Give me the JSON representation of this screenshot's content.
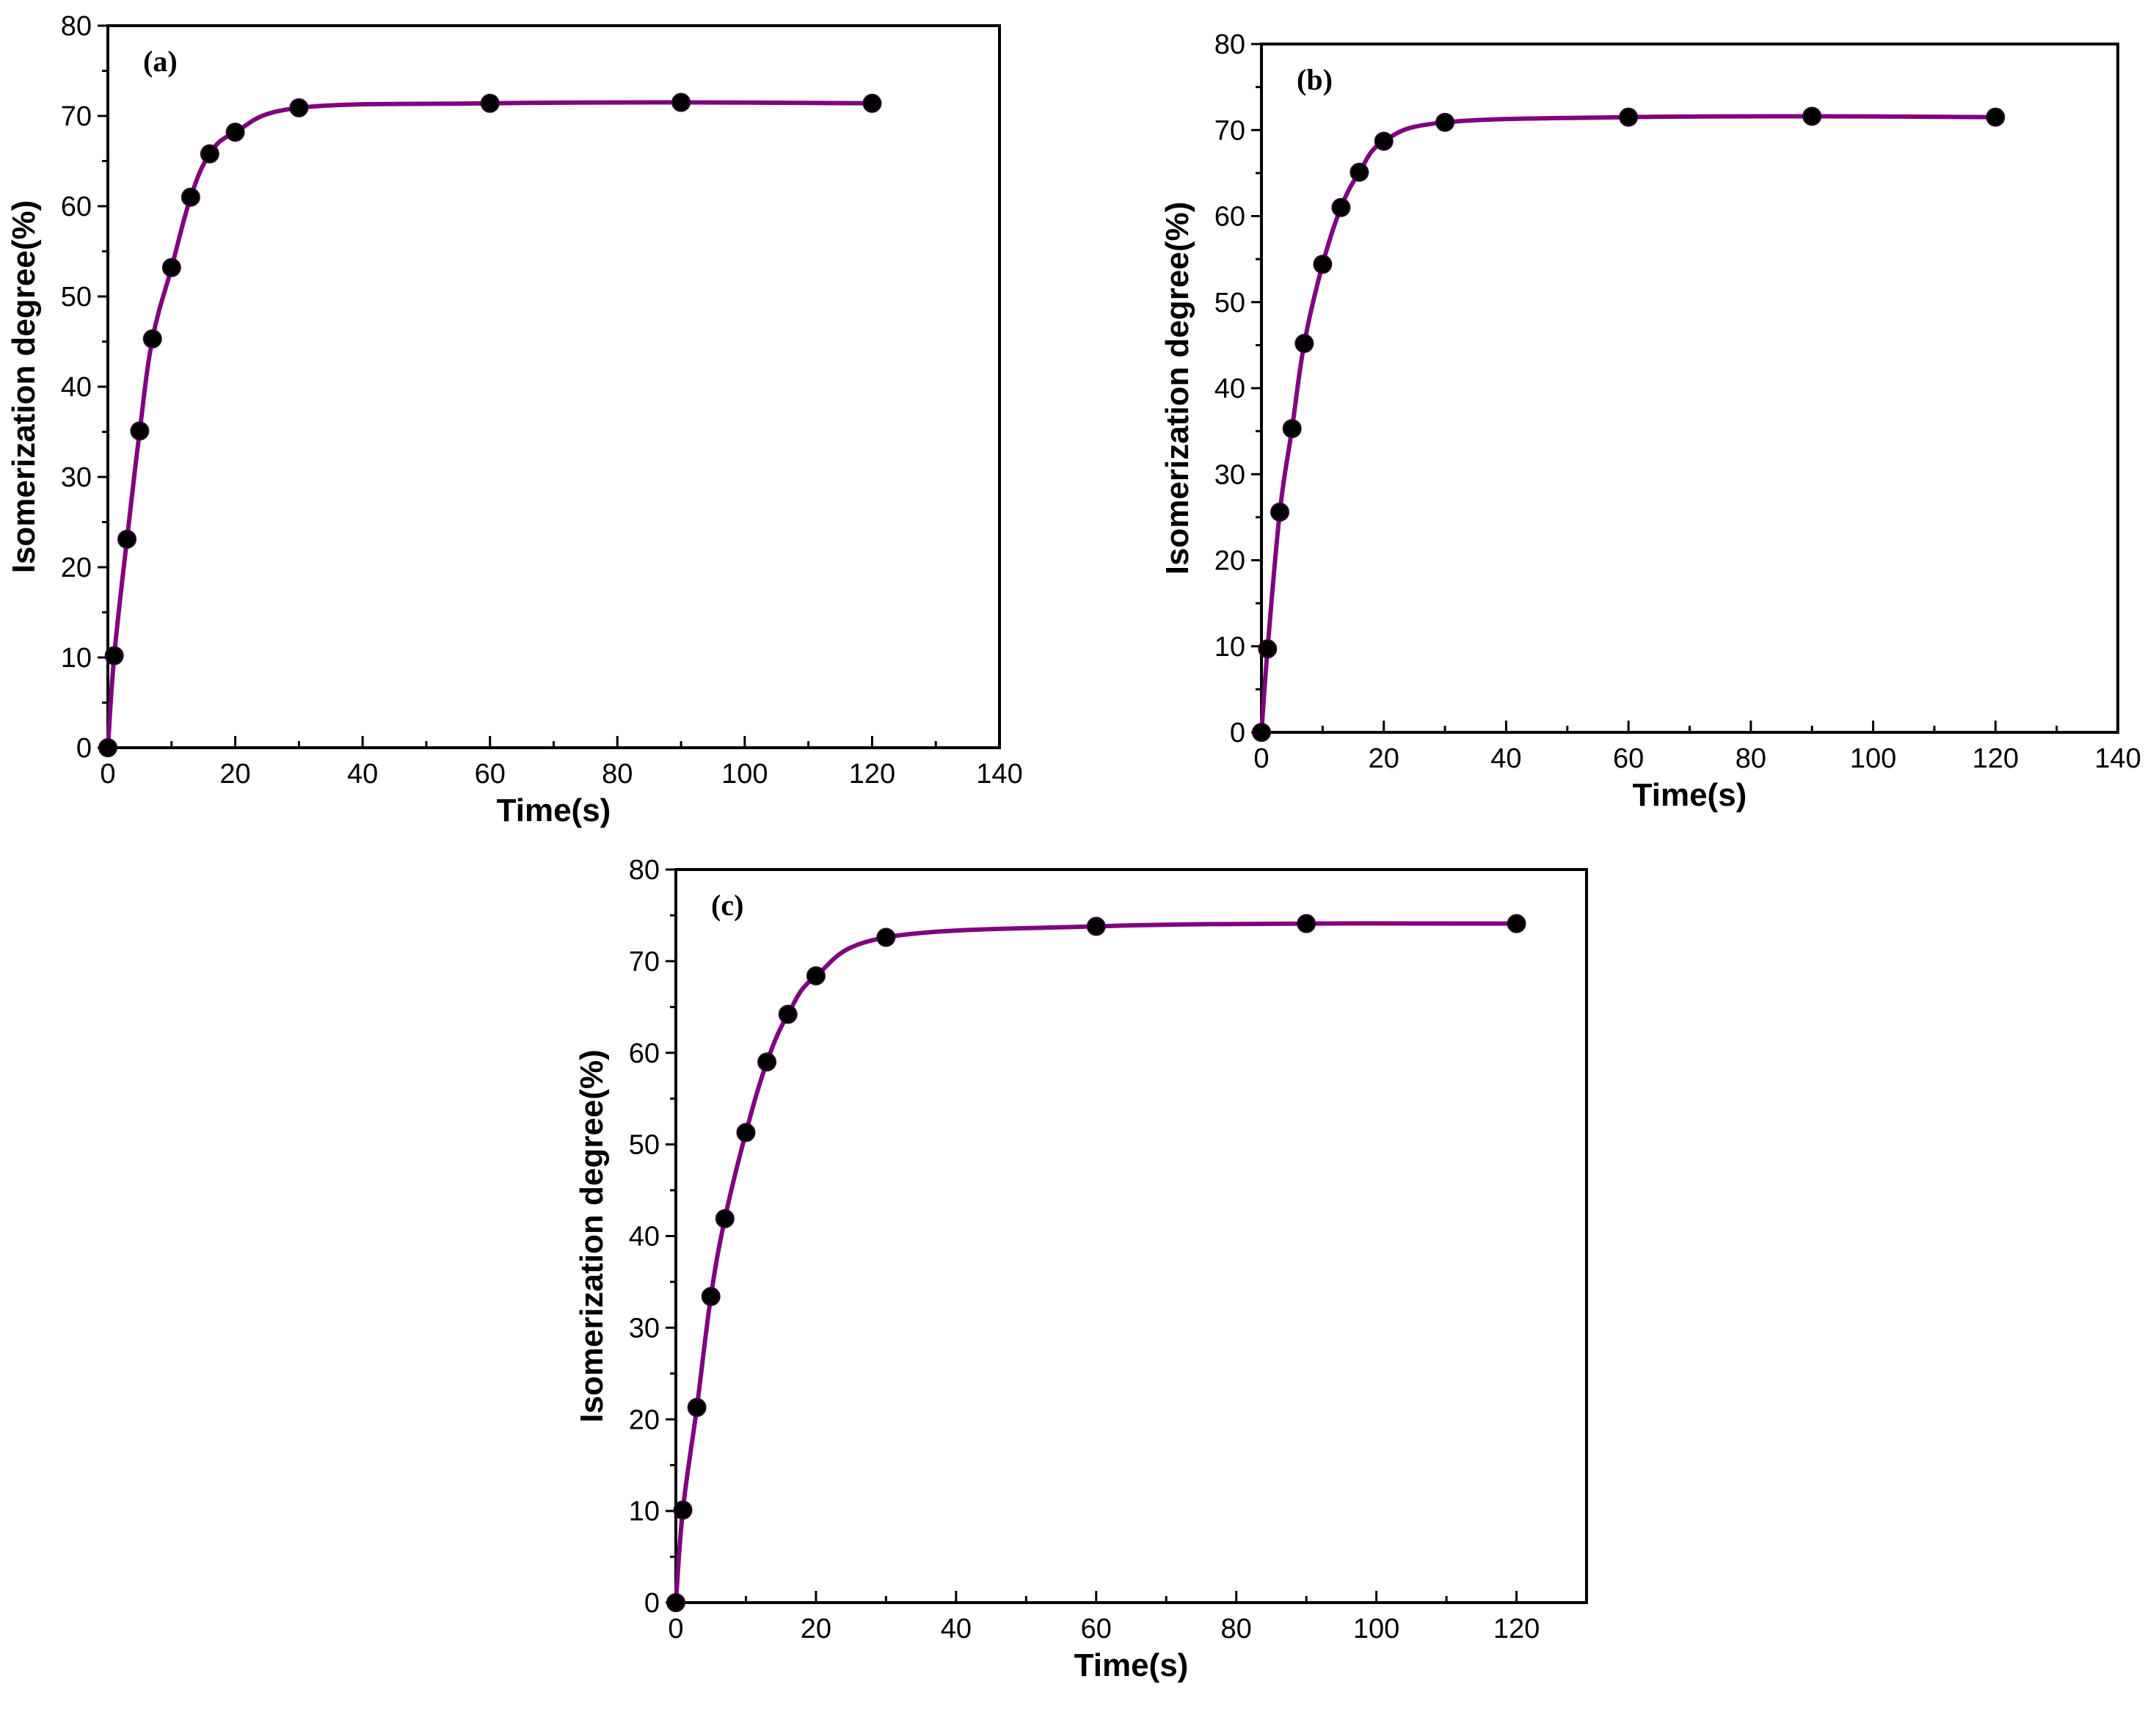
{
  "chart_data": [
    {
      "type": "line",
      "panel_label": "(a)",
      "xlabel": "Time(s)",
      "ylabel": "Isomerization degree(%)",
      "xlim": [
        0,
        140
      ],
      "ylim": [
        0,
        80
      ],
      "x_ticks": [
        0,
        20,
        40,
        60,
        80,
        100,
        120,
        140
      ],
      "y_ticks": [
        0,
        10,
        20,
        30,
        40,
        50,
        60,
        70,
        80
      ],
      "line_color": "#800080",
      "marker_color": "#000000",
      "series": [
        {
          "x": [
            0,
            1,
            3,
            5,
            7,
            10,
            13,
            16,
            20,
            30,
            60,
            90,
            120
          ],
          "values": [
            0,
            10.2,
            23.1,
            35.1,
            45.3,
            53.2,
            61.0,
            65.8,
            68.2,
            70.9,
            71.4,
            71.5,
            71.4
          ]
        }
      ]
    },
    {
      "type": "line",
      "panel_label": "(b)",
      "xlabel": "Time(s)",
      "ylabel": "Isomerization degree(%)",
      "xlim": [
        0,
        140
      ],
      "ylim": [
        0,
        80
      ],
      "x_ticks": [
        0,
        20,
        40,
        60,
        80,
        100,
        120,
        140
      ],
      "y_ticks": [
        0,
        10,
        20,
        30,
        40,
        50,
        60,
        70,
        80
      ],
      "line_color": "#800080",
      "marker_color": "#000000",
      "series": [
        {
          "x": [
            0,
            1,
            3,
            5,
            7,
            10,
            13,
            16,
            20,
            30,
            60,
            90,
            120
          ],
          "values": [
            0,
            9.7,
            25.6,
            35.3,
            45.2,
            54.4,
            61.0,
            65.1,
            68.7,
            70.9,
            71.5,
            71.6,
            71.5
          ]
        }
      ]
    },
    {
      "type": "line",
      "panel_label": "(c)",
      "xlabel": "Time(s)",
      "ylabel": "Isomerization degree(%)",
      "xlim": [
        0,
        130
      ],
      "ylim": [
        0,
        80
      ],
      "x_ticks": [
        0,
        20,
        40,
        60,
        80,
        100,
        120
      ],
      "y_ticks": [
        0,
        10,
        20,
        30,
        40,
        50,
        60,
        70,
        80
      ],
      "line_color": "#800080",
      "marker_color": "#000000",
      "series": [
        {
          "x": [
            0,
            1,
            3,
            5,
            7,
            10,
            13,
            16,
            20,
            30,
            60,
            90,
            120
          ],
          "values": [
            0,
            10.1,
            21.3,
            33.4,
            41.9,
            51.3,
            59.0,
            64.2,
            68.4,
            72.6,
            73.8,
            74.1,
            74.1
          ]
        }
      ]
    }
  ]
}
